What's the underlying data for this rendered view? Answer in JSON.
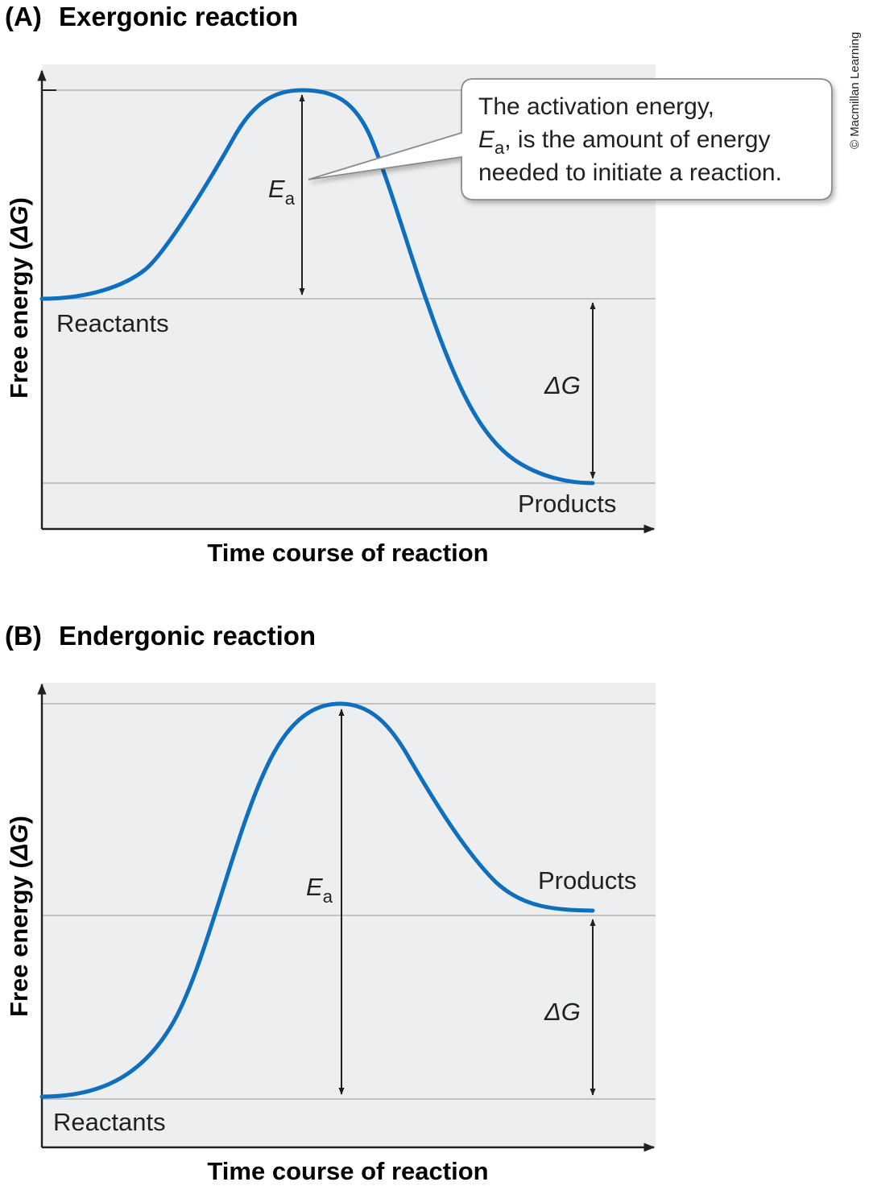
{
  "copyright": "© Macmillan Learning",
  "colors": {
    "curve": "#0f6fbe",
    "plot_bg": "#eceef0",
    "gridline": "#a8a8a8",
    "axis": "#231f20"
  },
  "panels": [
    {
      "letter": "(A)",
      "title": "Exergonic reaction",
      "y_axis_label": "Free energy (ΔG)",
      "y_axis_label_parts": {
        "text": "Free energy (",
        "symbol": "ΔG",
        "close": ")"
      },
      "x_axis_label": "Time course of reaction",
      "reactants_label": "Reactants",
      "products_label": "Products",
      "ea_symbol": "E",
      "ea_subscript": "a",
      "dg_label": "ΔG",
      "callout": {
        "line1": "The activation energy,",
        "line2_symbol": "E",
        "line2_subscript": "a",
        "line2_rest": ", is the amount of energy",
        "line3": "needed to initiate a reaction."
      }
    },
    {
      "letter": "(B)",
      "title": "Endergonic reaction",
      "y_axis_label": "Free energy (ΔG)",
      "y_axis_label_parts": {
        "text": "Free energy (",
        "symbol": "ΔG",
        "close": ")"
      },
      "x_axis_label": "Time course of reaction",
      "reactants_label": "Reactants",
      "products_label": "Products",
      "ea_symbol": "E",
      "ea_subscript": "a",
      "dg_label": "ΔG"
    }
  ]
}
